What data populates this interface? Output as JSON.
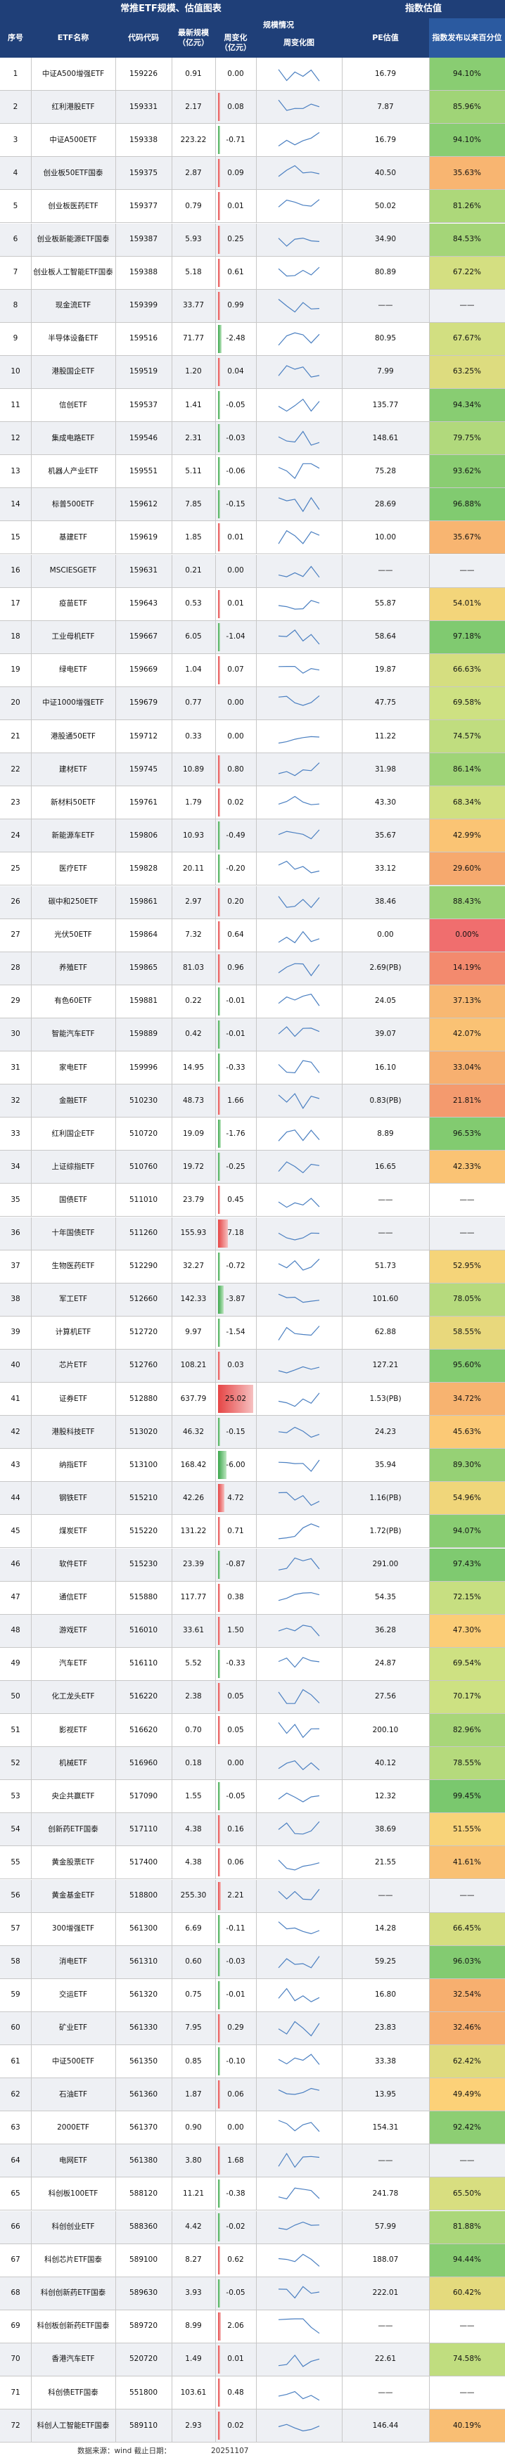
{
  "title_left": "常推ETF规模、估值图表",
  "title_right": "指数估值",
  "headers": [
    "序号",
    "ETF名称",
    "代码代码",
    "最新规模（亿元）",
    "周变化（亿元）",
    "周变化图",
    "PE估值",
    "指数发布以来百分位"
  ],
  "header_group": "规模情况",
  "rows": [
    {
      "no": "1",
      "name": "中证A500增强ETF",
      "code": "159226",
      "scale": "0.91",
      "chg": "0.00",
      "pe": "16.79",
      "pct": "94.10%"
    },
    {
      "no": "2",
      "name": "红利港股ETF",
      "code": "159331",
      "scale": "2.17",
      "chg": "0.08",
      "pe": "7.87",
      "pct": "85.96%"
    },
    {
      "no": "3",
      "name": "中证A500ETF",
      "code": "159338",
      "scale": "223.22",
      "chg": "-0.71",
      "pe": "16.79",
      "pct": "94.10%"
    },
    {
      "no": "4",
      "name": "创业板50ETF国泰",
      "code": "159375",
      "scale": "2.87",
      "chg": "0.09",
      "pe": "40.50",
      "pct": "35.63%"
    },
    {
      "no": "5",
      "name": "创业板医药ETF",
      "code": "159377",
      "scale": "0.79",
      "chg": "0.01",
      "pe": "50.02",
      "pct": "81.26%"
    },
    {
      "no": "6",
      "name": "创业板新能源ETF国泰",
      "code": "159387",
      "scale": "5.93",
      "chg": "0.25",
      "pe": "34.90",
      "pct": "84.53%"
    },
    {
      "no": "7",
      "name": "创业板人工智能ETF国泰",
      "code": "159388",
      "scale": "5.18",
      "chg": "0.61",
      "pe": "80.89",
      "pct": "67.22%"
    },
    {
      "no": "8",
      "name": "现金流ETF",
      "code": "159399",
      "scale": "33.77",
      "chg": "0.99",
      "pe": "——",
      "pct": "——"
    },
    {
      "no": "9",
      "name": "半导体设备ETF",
      "code": "159516",
      "scale": "71.77",
      "chg": "-2.48",
      "pe": "80.95",
      "pct": "67.67%"
    },
    {
      "no": "10",
      "name": "港股国企ETF",
      "code": "159519",
      "scale": "1.20",
      "chg": "0.04",
      "pe": "7.99",
      "pct": "63.25%"
    },
    {
      "no": "11",
      "name": "信创ETF",
      "code": "159537",
      "scale": "1.41",
      "chg": "-0.05",
      "pe": "135.77",
      "pct": "94.34%"
    },
    {
      "no": "12",
      "name": "集成电路ETF",
      "code": "159546",
      "scale": "2.31",
      "chg": "-0.03",
      "pe": "148.61",
      "pct": "79.75%"
    },
    {
      "no": "13",
      "name": "机器人产业ETF",
      "code": "159551",
      "scale": "5.11",
      "chg": "-0.06",
      "pe": "75.28",
      "pct": "93.62%"
    },
    {
      "no": "14",
      "name": "标普500ETF",
      "code": "159612",
      "scale": "7.85",
      "chg": "-0.15",
      "pe": "28.69",
      "pct": "96.88%"
    },
    {
      "no": "15",
      "name": "基建ETF",
      "code": "159619",
      "scale": "1.85",
      "chg": "0.01",
      "pe": "10.00",
      "pct": "35.67%"
    },
    {
      "no": "16",
      "name": "MSCIESGETF",
      "code": "159631",
      "scale": "0.21",
      "chg": "0.00",
      "pe": "——",
      "pct": "——"
    },
    {
      "no": "17",
      "name": "疫苗ETF",
      "code": "159643",
      "scale": "0.53",
      "chg": "0.01",
      "pe": "55.87",
      "pct": "54.01%"
    },
    {
      "no": "18",
      "name": "工业母机ETF",
      "code": "159667",
      "scale": "6.05",
      "chg": "-1.04",
      "pe": "58.64",
      "pct": "97.18%"
    },
    {
      "no": "19",
      "name": "绿电ETF",
      "code": "159669",
      "scale": "1.04",
      "chg": "0.07",
      "pe": "19.87",
      "pct": "66.63%"
    },
    {
      "no": "20",
      "name": "中证1000增强ETF",
      "code": "159679",
      "scale": "0.77",
      "chg": "0.00",
      "pe": "47.75",
      "pct": "69.58%"
    },
    {
      "no": "21",
      "name": "港股通50ETF",
      "code": "159712",
      "scale": "0.33",
      "chg": "0.00",
      "pe": "11.22",
      "pct": "74.57%"
    },
    {
      "no": "22",
      "name": "建材ETF",
      "code": "159745",
      "scale": "10.89",
      "chg": "0.80",
      "pe": "31.98",
      "pct": "86.14%"
    },
    {
      "no": "23",
      "name": "新材料50ETF",
      "code": "159761",
      "scale": "1.79",
      "chg": "0.02",
      "pe": "43.30",
      "pct": "68.34%"
    },
    {
      "no": "24",
      "name": "新能源车ETF",
      "code": "159806",
      "scale": "10.93",
      "chg": "-0.49",
      "pe": "35.67",
      "pct": "42.99%"
    },
    {
      "no": "25",
      "name": "医疗ETF",
      "code": "159828",
      "scale": "20.11",
      "chg": "-0.20",
      "pe": "33.12",
      "pct": "29.60%"
    },
    {
      "no": "26",
      "name": "碳中和250ETF",
      "code": "159861",
      "scale": "2.97",
      "chg": "0.20",
      "pe": "38.46",
      "pct": "88.43%"
    },
    {
      "no": "27",
      "name": "光伏50ETF",
      "code": "159864",
      "scale": "7.32",
      "chg": "0.64",
      "pe": "0.00",
      "pct": "0.00%"
    },
    {
      "no": "28",
      "name": "养殖ETF",
      "code": "159865",
      "scale": "81.03",
      "chg": "0.96",
      "pe": "2.69(PB)",
      "pct": "14.19%"
    },
    {
      "no": "29",
      "name": "有色60ETF",
      "code": "159881",
      "scale": "0.22",
      "chg": "-0.01",
      "pe": "24.05",
      "pct": "37.13%"
    },
    {
      "no": "30",
      "name": "智能汽车ETF",
      "code": "159889",
      "scale": "0.42",
      "chg": "-0.01",
      "pe": "39.07",
      "pct": "42.07%"
    },
    {
      "no": "31",
      "name": "家电ETF",
      "code": "159996",
      "scale": "14.95",
      "chg": "-0.33",
      "pe": "16.10",
      "pct": "33.04%"
    },
    {
      "no": "32",
      "name": "金融ETF",
      "code": "510230",
      "scale": "48.73",
      "chg": "1.66",
      "pe": "0.83(PB)",
      "pct": "21.81%"
    },
    {
      "no": "33",
      "name": "红利国企ETF",
      "code": "510720",
      "scale": "19.09",
      "chg": "-1.76",
      "pe": "8.89",
      "pct": "96.53%"
    },
    {
      "no": "34",
      "name": "上证综指ETF",
      "code": "510760",
      "scale": "19.72",
      "chg": "-0.25",
      "pe": "16.65",
      "pct": "42.33%"
    },
    {
      "no": "35",
      "name": "国债ETF",
      "code": "511010",
      "scale": "23.79",
      "chg": "0.45",
      "pe": "——",
      "pct": "——"
    },
    {
      "no": "36",
      "name": "十年国债ETF",
      "code": "511260",
      "scale": "155.93",
      "chg": "7.18",
      "pe": "——",
      "pct": "——"
    },
    {
      "no": "37",
      "name": "生物医药ETF",
      "code": "512290",
      "scale": "32.27",
      "chg": "-0.72",
      "pe": "51.73",
      "pct": "52.95%"
    },
    {
      "no": "38",
      "name": "军工ETF",
      "code": "512660",
      "scale": "142.33",
      "chg": "-3.87",
      "pe": "101.60",
      "pct": "78.05%"
    },
    {
      "no": "39",
      "name": "计算机ETF",
      "code": "512720",
      "scale": "9.97",
      "chg": "-1.54",
      "pe": "62.88",
      "pct": "58.55%"
    },
    {
      "no": "40",
      "name": "芯片ETF",
      "code": "512760",
      "scale": "108.21",
      "chg": "0.03",
      "pe": "127.21",
      "pct": "95.60%"
    },
    {
      "no": "41",
      "name": "证券ETF",
      "code": "512880",
      "scale": "637.79",
      "chg": "25.02",
      "pe": "1.53(PB)",
      "pct": "34.72%"
    },
    {
      "no": "42",
      "name": "港股科技ETF",
      "code": "513020",
      "scale": "46.32",
      "chg": "-0.15",
      "pe": "24.23",
      "pct": "45.63%"
    },
    {
      "no": "43",
      "name": "纳指ETF",
      "code": "513100",
      "scale": "168.42",
      "chg": "-6.00",
      "pe": "35.94",
      "pct": "89.30%"
    },
    {
      "no": "44",
      "name": "钢铁ETF",
      "code": "515210",
      "scale": "42.26",
      "chg": "4.72",
      "pe": "1.16(PB)",
      "pct": "54.96%"
    },
    {
      "no": "45",
      "name": "煤炭ETF",
      "code": "515220",
      "scale": "131.22",
      "chg": "0.71",
      "pe": "1.72(PB)",
      "pct": "94.07%"
    },
    {
      "no": "46",
      "name": "软件ETF",
      "code": "515230",
      "scale": "23.39",
      "chg": "-0.87",
      "pe": "291.00",
      "pct": "97.43%"
    },
    {
      "no": "47",
      "name": "通信ETF",
      "code": "515880",
      "scale": "117.77",
      "chg": "0.38",
      "pe": "54.35",
      "pct": "72.15%"
    },
    {
      "no": "48",
      "name": "游戏ETF",
      "code": "516010",
      "scale": "33.61",
      "chg": "1.50",
      "pe": "36.28",
      "pct": "47.30%"
    },
    {
      "no": "49",
      "name": "汽车ETF",
      "code": "516110",
      "scale": "5.52",
      "chg": "-0.33",
      "pe": "24.87",
      "pct": "69.54%"
    },
    {
      "no": "50",
      "name": "化工龙头ETF",
      "code": "516220",
      "scale": "2.38",
      "chg": "0.05",
      "pe": "27.56",
      "pct": "70.17%"
    },
    {
      "no": "51",
      "name": "影视ETF",
      "code": "516620",
      "scale": "0.70",
      "chg": "0.05",
      "pe": "200.10",
      "pct": "82.96%"
    },
    {
      "no": "52",
      "name": "机械ETF",
      "code": "516960",
      "scale": "0.18",
      "chg": "0.00",
      "pe": "40.12",
      "pct": "78.55%"
    },
    {
      "no": "53",
      "name": "央企共赢ETF",
      "code": "517090",
      "scale": "1.55",
      "chg": "-0.05",
      "pe": "12.32",
      "pct": "99.45%"
    },
    {
      "no": "54",
      "name": "创新药ETF国泰",
      "code": "517110",
      "scale": "4.38",
      "chg": "0.16",
      "pe": "38.69",
      "pct": "51.55%"
    },
    {
      "no": "55",
      "name": "黄金股票ETF",
      "code": "517400",
      "scale": "4.38",
      "chg": "0.06",
      "pe": "21.55",
      "pct": "41.61%"
    },
    {
      "no": "56",
      "name": "黄金基金ETF",
      "code": "518800",
      "scale": "255.30",
      "chg": "2.21",
      "pe": "——",
      "pct": "——"
    },
    {
      "no": "57",
      "name": "300增强ETF",
      "code": "561300",
      "scale": "6.69",
      "chg": "-0.11",
      "pe": "14.28",
      "pct": "66.45%"
    },
    {
      "no": "58",
      "name": "消电ETF",
      "code": "561310",
      "scale": "0.60",
      "chg": "-0.03",
      "pe": "59.25",
      "pct": "96.03%"
    },
    {
      "no": "59",
      "name": "交运ETF",
      "code": "561320",
      "scale": "0.75",
      "chg": "-0.01",
      "pe": "16.80",
      "pct": "32.54%"
    },
    {
      "no": "60",
      "name": "矿业ETF",
      "code": "561330",
      "scale": "7.95",
      "chg": "0.29",
      "pe": "23.83",
      "pct": "32.46%"
    },
    {
      "no": "61",
      "name": "中证500ETF",
      "code": "561350",
      "scale": "0.85",
      "chg": "-0.10",
      "pe": "33.38",
      "pct": "62.42%"
    },
    {
      "no": "62",
      "name": "石油ETF",
      "code": "561360",
      "scale": "1.87",
      "chg": "0.06",
      "pe": "13.95",
      "pct": "49.49%"
    },
    {
      "no": "63",
      "name": "2000ETF",
      "code": "561370",
      "scale": "0.90",
      "chg": "0.00",
      "pe": "154.31",
      "pct": "92.42%"
    },
    {
      "no": "64",
      "name": "电网ETF",
      "code": "561380",
      "scale": "3.80",
      "chg": "1.68",
      "pe": "——",
      "pct": "——"
    },
    {
      "no": "65",
      "name": "科创板100ETF",
      "code": "588120",
      "scale": "11.21",
      "chg": "-0.38",
      "pe": "241.78",
      "pct": "65.50%"
    },
    {
      "no": "66",
      "name": "科创创业ETF",
      "code": "588360",
      "scale": "4.42",
      "chg": "-0.02",
      "pe": "57.99",
      "pct": "81.88%"
    },
    {
      "no": "67",
      "name": "科创芯片ETF国泰",
      "code": "589100",
      "scale": "8.27",
      "chg": "0.62",
      "pe": "188.07",
      "pct": "94.44%"
    },
    {
      "no": "68",
      "name": "科创创新药ETF国泰",
      "code": "589630",
      "scale": "3.93",
      "chg": "-0.05",
      "pe": "222.01",
      "pct": "60.42%"
    },
    {
      "no": "69",
      "name": "科创板创新药ETF国泰",
      "code": "589720",
      "scale": "8.99",
      "chg": "2.06",
      "pe": "——",
      "pct": "——"
    },
    {
      "no": "70",
      "name": "香港汽车ETF",
      "code": "520720",
      "scale": "1.49",
      "chg": "0.01",
      "pe": "22.61",
      "pct": "74.58%"
    },
    {
      "no": "71",
      "name": "科创债ETF国泰",
      "code": "551800",
      "scale": "103.61",
      "chg": "0.48",
      "pe": "——",
      "pct": "——"
    },
    {
      "no": "72",
      "name": "科创人工智能ETF国泰",
      "code": "589110",
      "scale": "2.93",
      "chg": "0.02",
      "pe": "146.44",
      "pct": "40.19%"
    }
  ],
  "footer": {
    "source": "数据来源：wind 截止日期：",
    "date": "20251107"
  }
}
